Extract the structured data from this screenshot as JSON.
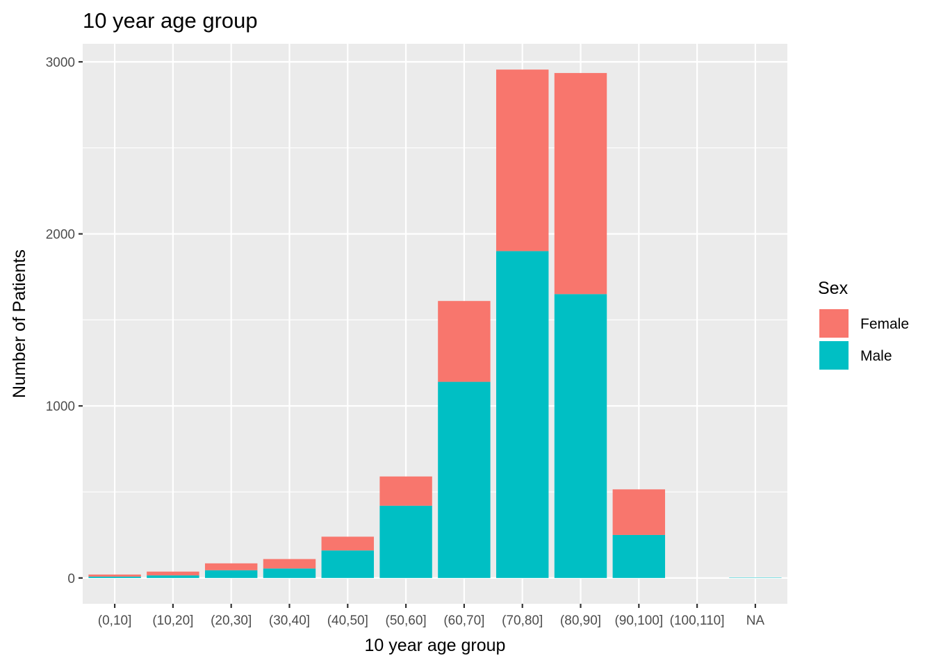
{
  "chart_data": {
    "type": "bar",
    "stacked": true,
    "title": "10 year age group",
    "xlabel": "10 year age group",
    "ylabel": "Number of Patients",
    "categories": [
      "(0,10]",
      "(10,20]",
      "(20,30]",
      "(30,40]",
      "(40,50]",
      "(50,60]",
      "(60,70]",
      "(70,80]",
      "(80,90]",
      "(90,100]",
      "(100,110]",
      "NA"
    ],
    "series": [
      {
        "name": "Male",
        "color": "#00BFC4",
        "values": [
          8,
          15,
          45,
          55,
          160,
          420,
          1140,
          1900,
          1650,
          250,
          0,
          2
        ]
      },
      {
        "name": "Female",
        "color": "#F8766D",
        "values": [
          12,
          22,
          40,
          55,
          80,
          170,
          470,
          1055,
          1285,
          265,
          0,
          0
        ]
      }
    ],
    "ylim": [
      -150,
      3105
    ],
    "yticks": [
      0,
      1000,
      2000,
      3000
    ],
    "grid": true,
    "legend": {
      "title": "Sex",
      "position": "right",
      "entries": [
        {
          "label": "Female",
          "color": "#F8766D"
        },
        {
          "label": "Male",
          "color": "#00BFC4"
        }
      ]
    },
    "panel_background": "#EBEBEB",
    "grid_color": "#FFFFFF"
  }
}
